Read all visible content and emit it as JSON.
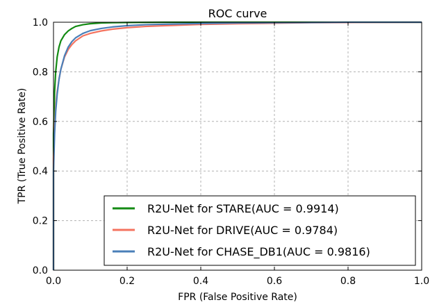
{
  "chart_data": {
    "type": "line",
    "title": "ROC curve",
    "xlabel": "FPR (False Positive Rate)",
    "ylabel": "TPR (True Positive Rate)",
    "xlim": [
      0.0,
      1.0
    ],
    "ylim": [
      0.0,
      1.0
    ],
    "xticks": [
      "0.0",
      "0.2",
      "0.4",
      "0.6",
      "0.8",
      "1.0"
    ],
    "yticks": [
      "0.0",
      "0.2",
      "0.4",
      "0.6",
      "0.8",
      "1.0"
    ],
    "grid": true,
    "legend_position": "lower-right",
    "series": [
      {
        "name": "R2U-Net for STARE(AUC = 0.9914)",
        "color": "#138a13",
        "x": [
          0.0,
          0.0,
          0.003,
          0.006,
          0.01,
          0.015,
          0.02,
          0.03,
          0.04,
          0.05,
          0.06,
          0.08,
          0.1,
          0.13,
          0.16,
          0.2,
          0.3,
          0.5,
          0.7,
          1.0
        ],
        "y": [
          0.0,
          0.55,
          0.72,
          0.8,
          0.86,
          0.9,
          0.925,
          0.95,
          0.965,
          0.975,
          0.983,
          0.99,
          0.994,
          0.997,
          0.998,
          0.999,
          1.0,
          1.0,
          1.0,
          1.0
        ]
      },
      {
        "name": "R2U-Net for DRIVE(AUC = 0.9784)",
        "color": "#f4735f",
        "x": [
          0.0,
          0.0,
          0.003,
          0.006,
          0.01,
          0.015,
          0.02,
          0.03,
          0.04,
          0.05,
          0.06,
          0.08,
          0.1,
          0.13,
          0.16,
          0.2,
          0.25,
          0.3,
          0.4,
          0.5,
          0.6,
          0.7,
          0.8,
          1.0
        ],
        "y": [
          0.0,
          0.45,
          0.58,
          0.66,
          0.72,
          0.77,
          0.81,
          0.86,
          0.89,
          0.91,
          0.925,
          0.945,
          0.955,
          0.965,
          0.972,
          0.978,
          0.983,
          0.986,
          0.991,
          0.994,
          0.996,
          0.998,
          0.999,
          1.0
        ]
      },
      {
        "name": "R2U-Net for CHASE_DB1(AUC = 0.9816)",
        "color": "#4a7fb8",
        "x": [
          0.0,
          0.0,
          0.003,
          0.006,
          0.01,
          0.015,
          0.02,
          0.03,
          0.04,
          0.05,
          0.06,
          0.08,
          0.1,
          0.13,
          0.16,
          0.2,
          0.25,
          0.3,
          0.4,
          0.5,
          0.6,
          0.7,
          0.8,
          1.0
        ],
        "y": [
          0.0,
          0.4,
          0.55,
          0.64,
          0.71,
          0.77,
          0.81,
          0.865,
          0.9,
          0.922,
          0.937,
          0.955,
          0.966,
          0.975,
          0.981,
          0.986,
          0.99,
          0.992,
          0.995,
          0.997,
          0.998,
          0.999,
          1.0,
          1.0
        ]
      }
    ]
  }
}
